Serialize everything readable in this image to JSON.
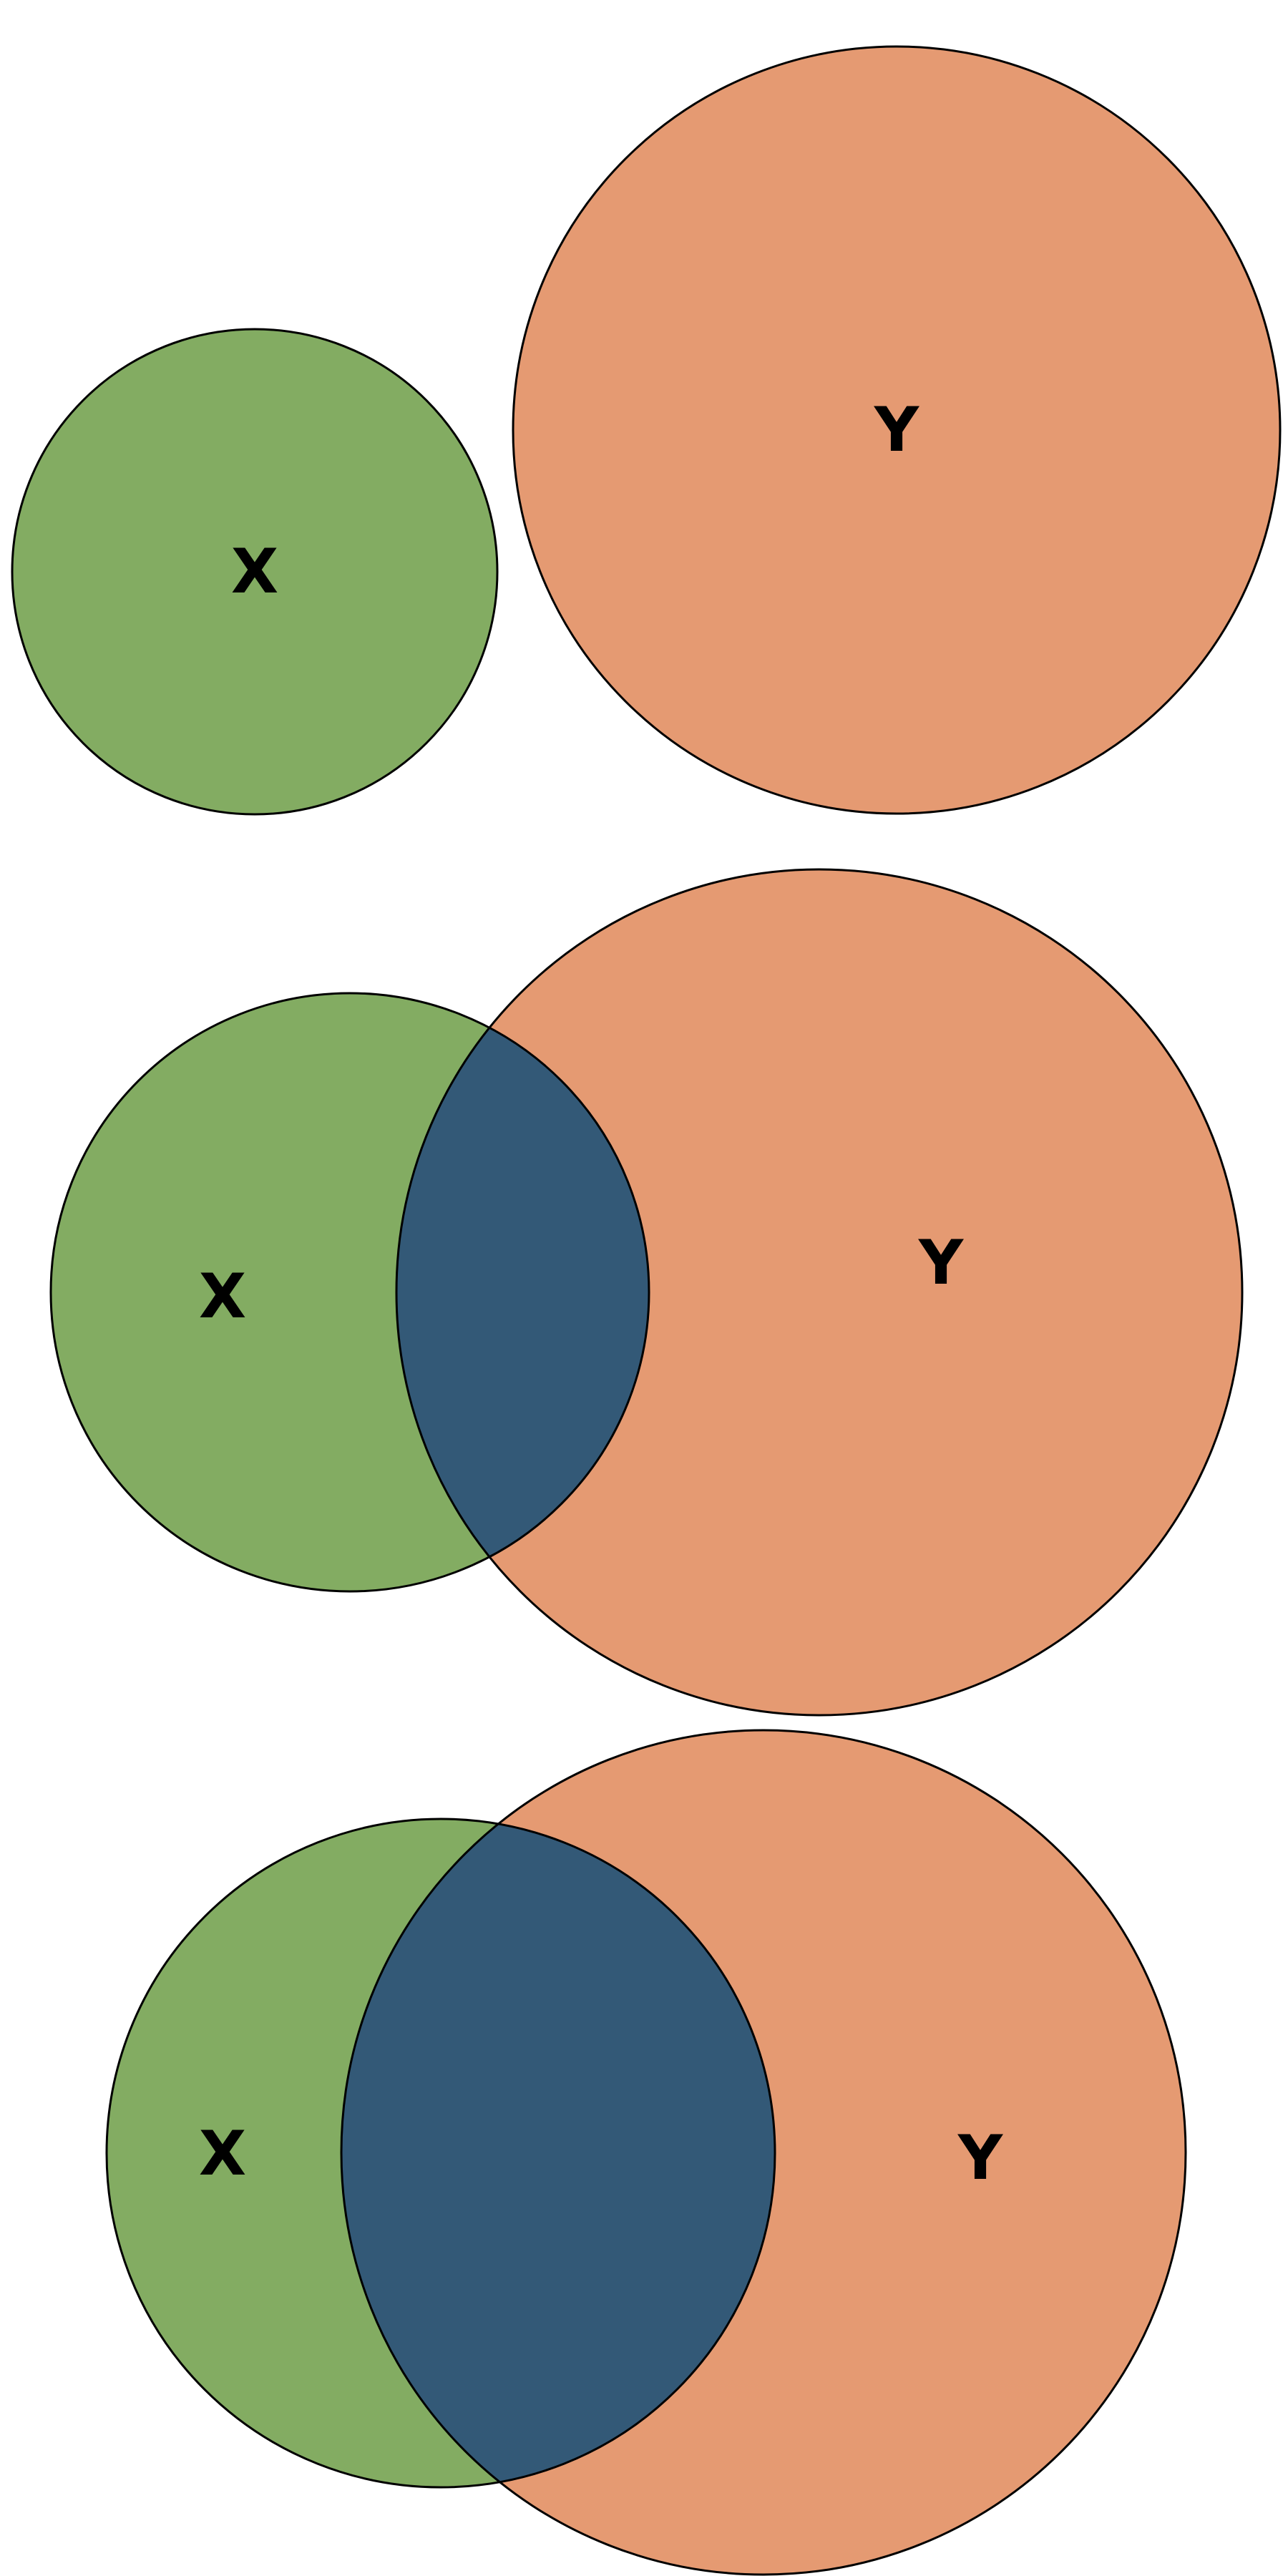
{
  "colors": {
    "x_only": "#83ac62",
    "y_only": "#e59a72",
    "overlap": "#335977",
    "stroke": "#000000",
    "background": "#ffffff"
  },
  "diagrams": [
    {
      "x_label": "X",
      "y_label": "Y"
    },
    {
      "x_label": "X",
      "y_label": "Y"
    },
    {
      "x_label": "X",
      "y_label": "Y"
    }
  ]
}
